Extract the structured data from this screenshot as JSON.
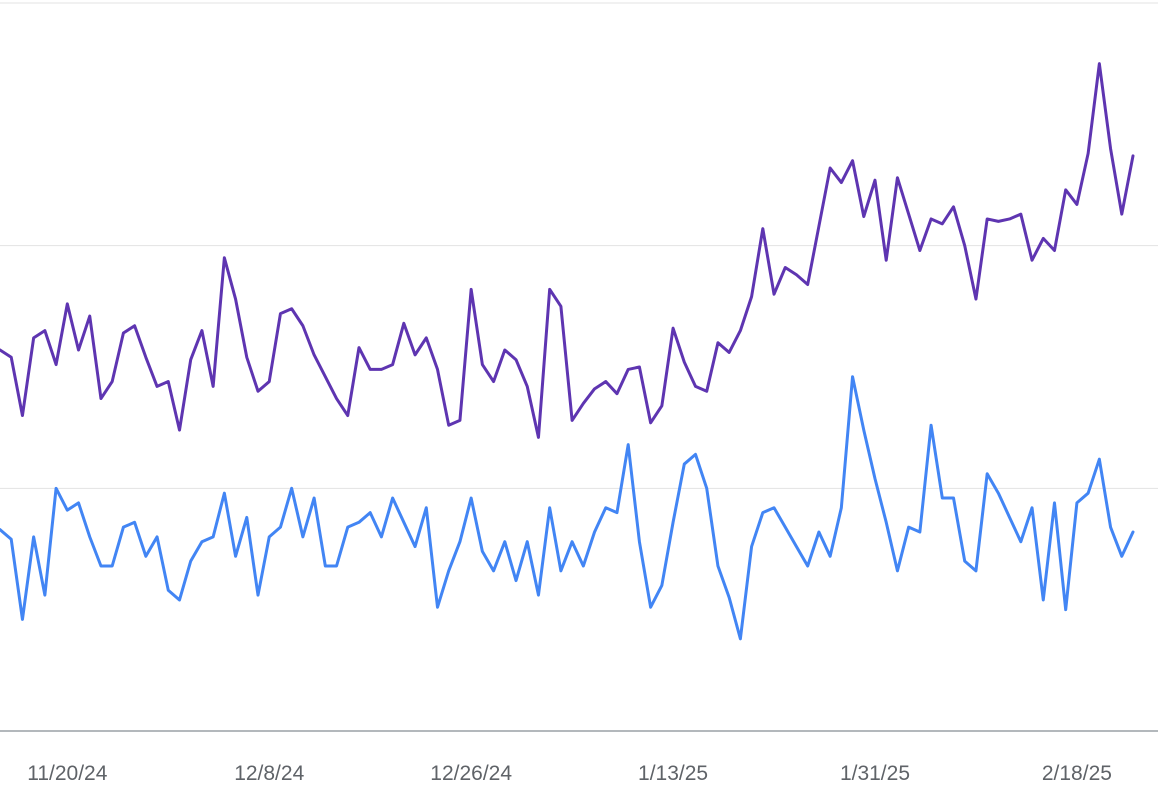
{
  "chart_data": {
    "type": "line",
    "categories": [
      null,
      null,
      null,
      null,
      null,
      null,
      "11/20/24",
      null,
      null,
      null,
      null,
      null,
      null,
      null,
      null,
      null,
      null,
      null,
      null,
      null,
      null,
      null,
      null,
      null,
      "12/8/24",
      null,
      null,
      null,
      null,
      null,
      null,
      null,
      null,
      null,
      null,
      null,
      null,
      null,
      null,
      null,
      null,
      null,
      "12/26/24",
      null,
      null,
      null,
      null,
      null,
      null,
      null,
      null,
      null,
      null,
      null,
      null,
      null,
      null,
      null,
      null,
      null,
      "1/13/25",
      null,
      null,
      null,
      null,
      null,
      null,
      null,
      null,
      null,
      null,
      null,
      null,
      null,
      null,
      null,
      null,
      null,
      "1/31/25",
      null,
      null,
      null,
      null,
      null,
      null,
      null,
      null,
      null,
      null,
      null,
      null,
      null,
      null,
      null,
      null,
      null,
      "2/18/25",
      null,
      null,
      null,
      null,
      null
    ],
    "series": [
      {
        "color": "#5e35b1",
        "values": [
          1.57,
          1.54,
          1.3,
          1.62,
          1.65,
          1.51,
          1.76,
          1.57,
          1.71,
          1.37,
          1.44,
          1.64,
          1.67,
          1.54,
          1.42,
          1.44,
          1.24,
          1.53,
          1.65,
          1.42,
          1.95,
          1.78,
          1.54,
          1.4,
          1.44,
          1.72,
          1.74,
          1.67,
          1.55,
          1.46,
          1.37,
          1.3,
          1.58,
          1.49,
          1.49,
          1.51,
          1.68,
          1.55,
          1.62,
          1.49,
          1.26,
          1.28,
          1.82,
          1.51,
          1.44,
          1.57,
          1.53,
          1.42,
          1.21,
          1.82,
          1.75,
          1.28,
          1.35,
          1.41,
          1.44,
          1.39,
          1.49,
          1.5,
          1.27,
          1.34,
          1.66,
          1.52,
          1.42,
          1.4,
          1.6,
          1.56,
          1.65,
          1.79,
          2.07,
          1.8,
          1.91,
          1.88,
          1.84,
          2.08,
          2.32,
          2.26,
          2.35,
          2.12,
          2.27,
          1.94,
          2.28,
          2.13,
          1.98,
          2.11,
          2.09,
          2.16,
          2.0,
          1.78,
          2.11,
          2.1,
          2.11,
          2.13,
          1.94,
          2.03,
          1.98,
          2.23,
          2.17,
          2.38,
          2.75,
          2.4,
          2.13,
          2.37
        ]
      },
      {
        "color": "#4285f4",
        "values": [
          0.83,
          0.79,
          0.46,
          0.8,
          0.56,
          1.0,
          0.91,
          0.94,
          0.8,
          0.68,
          0.68,
          0.84,
          0.86,
          0.72,
          0.8,
          0.58,
          0.54,
          0.7,
          0.78,
          0.8,
          0.98,
          0.72,
          0.88,
          0.56,
          0.8,
          0.84,
          1.0,
          0.8,
          0.96,
          0.68,
          0.68,
          0.84,
          0.86,
          0.9,
          0.8,
          0.96,
          0.86,
          0.76,
          0.92,
          0.51,
          0.66,
          0.78,
          0.96,
          0.74,
          0.66,
          0.78,
          0.62,
          0.78,
          0.56,
          0.92,
          0.66,
          0.78,
          0.68,
          0.82,
          0.92,
          0.9,
          1.18,
          0.78,
          0.51,
          0.6,
          0.86,
          1.1,
          1.14,
          1.0,
          0.68,
          0.55,
          0.38,
          0.76,
          0.9,
          0.92,
          0.84,
          0.76,
          0.68,
          0.82,
          0.72,
          0.92,
          1.46,
          1.24,
          1.04,
          0.86,
          0.66,
          0.84,
          0.82,
          1.26,
          0.96,
          0.96,
          0.7,
          0.66,
          1.06,
          0.98,
          0.88,
          0.78,
          0.92,
          0.54,
          0.94,
          0.5,
          0.94,
          0.98,
          1.12,
          0.84,
          0.72,
          0.82
        ]
      }
    ],
    "ylim": [
      0,
      3
    ],
    "yticks": [
      0,
      1,
      2,
      3
    ],
    "grid": true
  }
}
